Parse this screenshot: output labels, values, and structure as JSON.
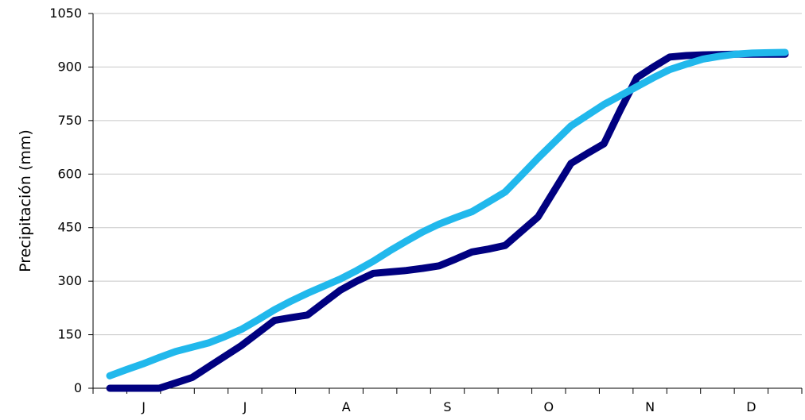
{
  "chart_data": {
    "type": "line",
    "ylabel": "Precipitación (mm)",
    "ylim": [
      0,
      1050
    ],
    "yticks": [
      0,
      150,
      300,
      450,
      600,
      750,
      900,
      1050
    ],
    "month_labels": [
      "J",
      "J",
      "A",
      "S",
      "O",
      "N",
      "D"
    ],
    "grid": true,
    "legend": "none",
    "x": [
      1,
      2,
      3,
      4,
      5,
      6,
      7,
      8,
      9,
      10,
      11,
      12,
      13,
      14,
      15,
      16,
      17,
      18,
      19,
      20,
      21,
      22,
      23,
      24,
      25,
      26,
      27,
      28,
      29,
      30,
      31,
      32,
      33,
      34,
      35,
      36,
      37,
      38,
      39,
      40,
      41,
      42
    ],
    "series": [
      {
        "color": "#000080",
        "values": [
          0,
          0,
          0,
          0,
          15,
          30,
          60,
          90,
          120,
          155,
          190,
          198,
          205,
          240,
          275,
          300,
          322,
          326,
          330,
          336,
          343,
          362,
          382,
          390,
          400,
          440,
          480,
          555,
          630,
          658,
          685,
          780,
          870,
          900,
          928,
          932,
          934,
          935,
          936,
          936,
          936,
          936
        ]
      },
      {
        "color": "#21b8ec",
        "values": [
          35,
          52,
          68,
          86,
          103,
          115,
          127,
          145,
          165,
          192,
          220,
          244,
          266,
          286,
          306,
          330,
          356,
          385,
          412,
          438,
          460,
          478,
          495,
          522,
          550,
          597,
          645,
          690,
          735,
          765,
          795,
          820,
          845,
          870,
          893,
          908,
          922,
          930,
          936,
          939,
          940,
          941
        ]
      }
    ]
  }
}
